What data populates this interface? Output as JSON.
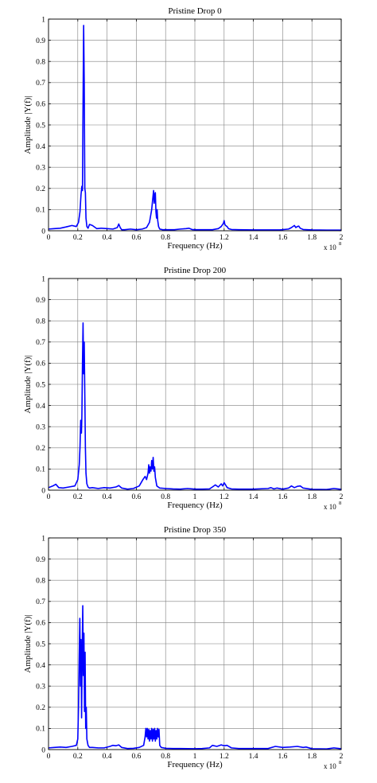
{
  "colors": {
    "line": "#0000ff",
    "grid": "#7f7f7f",
    "axis": "#000000",
    "background": "#ffffff"
  },
  "chart_data": [
    {
      "type": "line",
      "title": "Pristine Drop 0",
      "xlabel": "Frequency (Hz)",
      "ylabel": "Amplitude |Y(f)|",
      "x_multiplier_label": "x 10",
      "x_multiplier_exp": "8",
      "xlim": [
        0,
        2
      ],
      "ylim": [
        0,
        1
      ],
      "xticks": [
        "0",
        "0.2",
        "0.4",
        "0.6",
        "0.8",
        "1",
        "1.2",
        "1.4",
        "1.6",
        "1.8",
        "2"
      ],
      "yticks": [
        "0",
        "0.1",
        "0.2",
        "0.3",
        "0.4",
        "0.5",
        "0.6",
        "0.7",
        "0.8",
        "0.9",
        "1"
      ],
      "grid": true,
      "series": [
        {
          "x": [
            0,
            0.04,
            0.08,
            0.12,
            0.16,
            0.19,
            0.205,
            0.215,
            0.222,
            0.228,
            0.232,
            0.236,
            0.24,
            0.244,
            0.248,
            0.252,
            0.256,
            0.262,
            0.27,
            0.28,
            0.3,
            0.33,
            0.36,
            0.4,
            0.44,
            0.47,
            0.48,
            0.49,
            0.5,
            0.52,
            0.56,
            0.6,
            0.64,
            0.67,
            0.69,
            0.705,
            0.712,
            0.718,
            0.722,
            0.726,
            0.73,
            0.734,
            0.738,
            0.742,
            0.746,
            0.752,
            0.76,
            0.78,
            0.82,
            0.86,
            0.9,
            0.94,
            0.96,
            0.98,
            1.0,
            1.04,
            1.08,
            1.12,
            1.16,
            1.18,
            1.195,
            1.2,
            1.205,
            1.21,
            1.22,
            1.23,
            1.25,
            1.3,
            1.4,
            1.5,
            1.58,
            1.64,
            1.66,
            1.68,
            1.69,
            1.7,
            1.71,
            1.72,
            1.74,
            1.8,
            1.9,
            2.0
          ],
          "y": [
            0.008,
            0.01,
            0.012,
            0.018,
            0.025,
            0.02,
            0.04,
            0.09,
            0.17,
            0.21,
            0.19,
            0.6,
            0.97,
            0.7,
            0.2,
            0.18,
            0.06,
            0.02,
            0.012,
            0.03,
            0.025,
            0.01,
            0.012,
            0.01,
            0.008,
            0.015,
            0.032,
            0.015,
            0.005,
            0.005,
            0.008,
            0.005,
            0.008,
            0.015,
            0.04,
            0.1,
            0.15,
            0.19,
            0.13,
            0.17,
            0.18,
            0.09,
            0.06,
            0.1,
            0.05,
            0.02,
            0.008,
            0.005,
            0.005,
            0.005,
            0.008,
            0.01,
            0.012,
            0.006,
            0.005,
            0.005,
            0.005,
            0.005,
            0.01,
            0.02,
            0.035,
            0.048,
            0.03,
            0.025,
            0.02,
            0.01,
            0.006,
            0.005,
            0.004,
            0.004,
            0.004,
            0.008,
            0.015,
            0.025,
            0.015,
            0.02,
            0.022,
            0.012,
            0.006,
            0.004,
            0.003,
            0.003
          ]
        }
      ]
    },
    {
      "type": "line",
      "title": "Pristine Drop 200",
      "xlabel": "Frequency (Hz)",
      "ylabel": "Amplitude |Y(f)|",
      "x_multiplier_label": "x 10",
      "x_multiplier_exp": "8",
      "xlim": [
        0,
        2
      ],
      "ylim": [
        0,
        1
      ],
      "xticks": [
        "0",
        "0.2",
        "0.4",
        "0.6",
        "0.8",
        "1",
        "1.2",
        "1.4",
        "1.6",
        "1.8",
        "2"
      ],
      "yticks": [
        "0",
        "0.1",
        "0.2",
        "0.3",
        "0.4",
        "0.5",
        "0.6",
        "0.7",
        "0.8",
        "0.9",
        "1"
      ],
      "grid": true,
      "series": [
        {
          "x": [
            0,
            0.03,
            0.05,
            0.07,
            0.1,
            0.14,
            0.18,
            0.2,
            0.21,
            0.215,
            0.22,
            0.225,
            0.228,
            0.232,
            0.236,
            0.24,
            0.244,
            0.248,
            0.252,
            0.256,
            0.262,
            0.27,
            0.28,
            0.3,
            0.34,
            0.38,
            0.42,
            0.46,
            0.47,
            0.48,
            0.5,
            0.54,
            0.58,
            0.62,
            0.645,
            0.66,
            0.67,
            0.68,
            0.685,
            0.69,
            0.695,
            0.7,
            0.705,
            0.71,
            0.715,
            0.72,
            0.725,
            0.73,
            0.74,
            0.76,
            0.8,
            0.85,
            0.9,
            0.95,
            1.0,
            1.05,
            1.1,
            1.12,
            1.14,
            1.16,
            1.18,
            1.19,
            1.2,
            1.21,
            1.22,
            1.25,
            1.3,
            1.4,
            1.5,
            1.52,
            1.54,
            1.56,
            1.6,
            1.64,
            1.66,
            1.68,
            1.7,
            1.72,
            1.74,
            1.8,
            1.9,
            1.95,
            2.0
          ],
          "y": [
            0.012,
            0.02,
            0.028,
            0.012,
            0.01,
            0.015,
            0.02,
            0.05,
            0.12,
            0.2,
            0.33,
            0.27,
            0.35,
            0.6,
            0.79,
            0.55,
            0.7,
            0.45,
            0.2,
            0.08,
            0.03,
            0.015,
            0.01,
            0.012,
            0.008,
            0.012,
            0.01,
            0.015,
            0.018,
            0.022,
            0.01,
            0.005,
            0.008,
            0.02,
            0.05,
            0.065,
            0.05,
            0.08,
            0.12,
            0.08,
            0.11,
            0.09,
            0.14,
            0.1,
            0.155,
            0.09,
            0.11,
            0.06,
            0.02,
            0.01,
            0.008,
            0.006,
            0.005,
            0.008,
            0.005,
            0.005,
            0.006,
            0.015,
            0.025,
            0.015,
            0.03,
            0.02,
            0.035,
            0.025,
            0.012,
            0.006,
            0.005,
            0.005,
            0.008,
            0.012,
            0.006,
            0.01,
            0.005,
            0.01,
            0.02,
            0.012,
            0.018,
            0.02,
            0.01,
            0.004,
            0.003,
            0.008,
            0.004
          ]
        }
      ]
    },
    {
      "type": "line",
      "title": "Pristine Drop 350",
      "xlabel": "Frequency (Hz)",
      "ylabel": "Amplitude |Y(f)|",
      "x_multiplier_label": "x 10",
      "x_multiplier_exp": "8",
      "xlim": [
        0,
        2
      ],
      "ylim": [
        0,
        1
      ],
      "xticks": [
        "0",
        "0.2",
        "0.4",
        "0.6",
        "0.8",
        "1",
        "1.2",
        "1.4",
        "1.6",
        "1.8",
        "2"
      ],
      "yticks": [
        "0",
        "0.1",
        "0.2",
        "0.3",
        "0.4",
        "0.5",
        "0.6",
        "0.7",
        "0.8",
        "0.9",
        "1"
      ],
      "grid": true,
      "series": [
        {
          "x": [
            0,
            0.04,
            0.08,
            0.12,
            0.16,
            0.19,
            0.2,
            0.205,
            0.21,
            0.214,
            0.218,
            0.222,
            0.226,
            0.23,
            0.234,
            0.238,
            0.242,
            0.246,
            0.25,
            0.254,
            0.258,
            0.262,
            0.27,
            0.28,
            0.3,
            0.34,
            0.38,
            0.42,
            0.44,
            0.46,
            0.48,
            0.5,
            0.54,
            0.58,
            0.62,
            0.65,
            0.66,
            0.665,
            0.67,
            0.675,
            0.68,
            0.685,
            0.69,
            0.695,
            0.7,
            0.705,
            0.71,
            0.715,
            0.72,
            0.725,
            0.73,
            0.735,
            0.74,
            0.745,
            0.75,
            0.755,
            0.76,
            0.77,
            0.8,
            0.85,
            0.9,
            1.0,
            1.05,
            1.1,
            1.12,
            1.15,
            1.18,
            1.2,
            1.22,
            1.25,
            1.3,
            1.4,
            1.5,
            1.55,
            1.6,
            1.65,
            1.7,
            1.74,
            1.76,
            1.8,
            1.9,
            1.95,
            2.0
          ],
          "y": [
            0.008,
            0.01,
            0.012,
            0.01,
            0.015,
            0.02,
            0.05,
            0.2,
            0.45,
            0.62,
            0.3,
            0.52,
            0.15,
            0.45,
            0.68,
            0.35,
            0.55,
            0.18,
            0.46,
            0.1,
            0.2,
            0.05,
            0.02,
            0.01,
            0.01,
            0.008,
            0.008,
            0.015,
            0.02,
            0.018,
            0.022,
            0.01,
            0.005,
            0.006,
            0.01,
            0.02,
            0.06,
            0.1,
            0.06,
            0.1,
            0.05,
            0.095,
            0.04,
            0.09,
            0.05,
            0.1,
            0.04,
            0.095,
            0.05,
            0.1,
            0.04,
            0.09,
            0.05,
            0.1,
            0.06,
            0.095,
            0.02,
            0.01,
            0.006,
            0.005,
            0.005,
            0.004,
            0.005,
            0.008,
            0.02,
            0.015,
            0.022,
            0.018,
            0.02,
            0.008,
            0.005,
            0.005,
            0.005,
            0.015,
            0.01,
            0.012,
            0.015,
            0.01,
            0.012,
            0.004,
            0.003,
            0.008,
            0.004
          ]
        }
      ]
    }
  ]
}
